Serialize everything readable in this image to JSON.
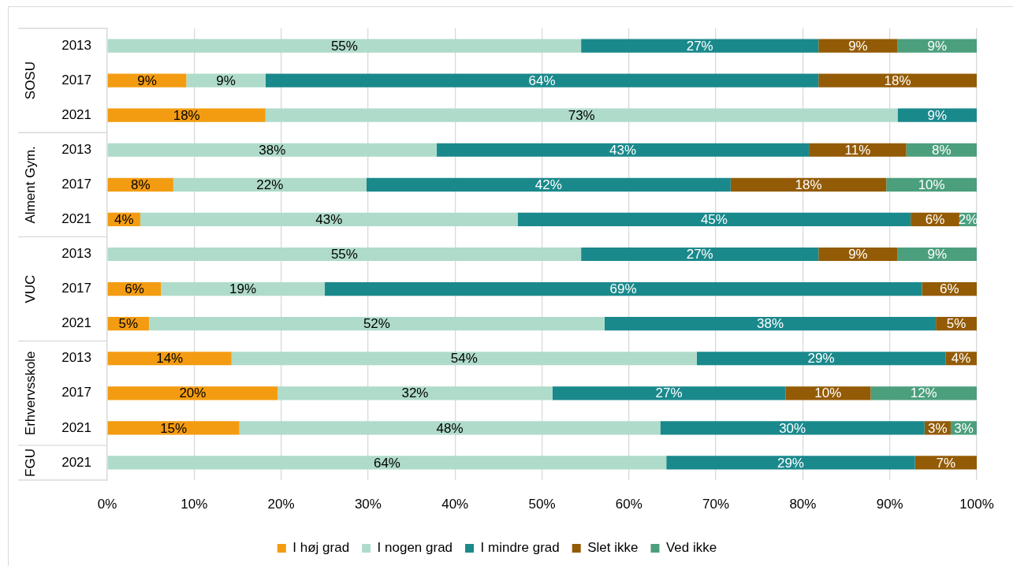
{
  "chart_data": {
    "type": "bar",
    "orientation": "horizontal",
    "stacked": true,
    "categories": [
      "2013",
      "2017",
      "2021",
      "2013",
      "2017",
      "2021",
      "2013",
      "2017",
      "2021",
      "2013",
      "2017",
      "2021",
      "2021"
    ],
    "annotations": [
      "SOSU",
      "Alment Gym.",
      "VUC",
      "Erhvervsskole",
      "FGU"
    ],
    "series": [
      {
        "name": "I høj grad",
        "color": "#f39c12",
        "values": [
          null,
          9.1,
          18.2,
          null,
          7.6,
          3.8,
          null,
          6.2,
          4.8,
          14.3,
          19.6,
          15.2,
          null
        ],
        "value_labels": [
          null,
          "9%",
          "18%",
          null,
          "8%",
          "4%",
          null,
          "6%",
          "5%",
          "14%",
          "20%",
          "15%",
          null
        ]
      },
      {
        "name": "I nogen grad",
        "color": "#afdbca",
        "values": [
          54.5,
          9.1,
          72.7,
          37.9,
          22.2,
          43.4,
          54.5,
          18.8,
          52.4,
          53.5,
          31.6,
          48.4,
          64.3
        ],
        "value_labels": [
          "55%",
          "9%",
          "73%",
          "38%",
          "22%",
          "43%",
          "55%",
          "19%",
          "52%",
          "54%",
          "32%",
          "48%",
          "64%"
        ]
      },
      {
        "name": "I mindre grad",
        "color": "#1a898c",
        "values": [
          27.3,
          63.6,
          9.1,
          42.8,
          41.9,
          45.2,
          27.3,
          68.7,
          38.1,
          28.6,
          26.8,
          30.4,
          28.6
        ],
        "value_labels": [
          "27%",
          "64%",
          "9%",
          "43%",
          "42%",
          "45%",
          "27%",
          "69%",
          "38%",
          "29%",
          "27%",
          "30%",
          "29%"
        ]
      },
      {
        "name": "Slet ikke",
        "color": "#935b05",
        "values": [
          9.1,
          18.2,
          null,
          11.2,
          17.9,
          5.6,
          9.1,
          6.3,
          4.7,
          3.6,
          9.8,
          3.0,
          7.1
        ],
        "value_labels": [
          "9%",
          "18%",
          null,
          "11%",
          "18%",
          "6%",
          "9%",
          "6%",
          "5%",
          "4%",
          "10%",
          "3%",
          "7%"
        ]
      },
      {
        "name": "Ved ikke",
        "color": "#4b9f7d",
        "values": [
          9.1,
          null,
          null,
          8.1,
          10.4,
          2.0,
          9.1,
          null,
          null,
          null,
          12.2,
          3.0,
          null
        ],
        "value_labels": [
          "9%",
          null,
          null,
          "8%",
          "10%",
          "2%",
          "9%",
          null,
          null,
          null,
          "12%",
          "3%",
          null
        ]
      }
    ],
    "xlim": [
      0,
      100
    ],
    "xticks": [
      {
        "value": 0,
        "label": "0%"
      },
      {
        "value": 10,
        "label": "10%"
      },
      {
        "value": 20,
        "label": "20%"
      },
      {
        "value": 30,
        "label": "30%"
      },
      {
        "value": 40,
        "label": "40%"
      },
      {
        "value": 50,
        "label": "50%"
      },
      {
        "value": 60,
        "label": "60%"
      },
      {
        "value": 70,
        "label": "70%"
      },
      {
        "value": 80,
        "label": "80%"
      },
      {
        "value": 90,
        "label": "90%"
      },
      {
        "value": 100,
        "label": "100%"
      }
    ],
    "grid": "x",
    "legend": "bottom"
  }
}
